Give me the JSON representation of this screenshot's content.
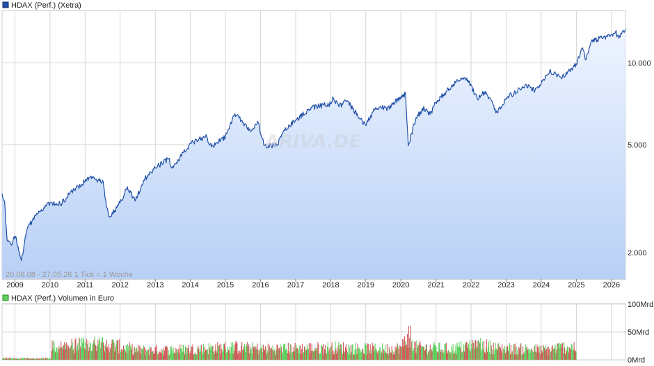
{
  "colors": {
    "price_line": "#1f4fa6",
    "price_fill_top": "#eef4ff",
    "price_fill_bottom": "#b8d0f6",
    "grid": "#d6d6d6",
    "volume_up": "#5ed05e",
    "volume_down": "#d05a5a"
  },
  "watermark": "ARIVA.DE",
  "chart_data": [
    {
      "type": "area",
      "title": "HDAX (Perf.) (Xetra)",
      "note": "20.08.08 - 27.05.26    1 Tick = 1 Woche",
      "y_scale": "log",
      "ylim": [
        1600,
        15500
      ],
      "xlim": [
        "2008-08-20",
        "2026-05-27"
      ],
      "y_ticks": [
        {
          "value": 2000,
          "label": "2.000"
        },
        {
          "value": 5000,
          "label": "5.000"
        },
        {
          "value": 10000,
          "label": "10.000"
        }
      ],
      "x_ticks": [
        "2009",
        "2010",
        "2011",
        "2012",
        "2013",
        "2014",
        "2015",
        "2016",
        "2017",
        "2018",
        "2019",
        "2020",
        "2021",
        "2022",
        "2023",
        "2024",
        "2025",
        "2026"
      ],
      "series": [
        {
          "x": [
            "2008-08-20",
            "2008-09-15",
            "2008-10-10",
            "2008-11-20",
            "2009-01-06",
            "2009-03-09",
            "2009-05-01",
            "2009-08-01",
            "2009-12-31",
            "2010-05-07",
            "2010-08-01",
            "2010-12-31",
            "2011-02-17",
            "2011-05-02",
            "2011-07-08",
            "2011-08-10",
            "2011-09-12",
            "2011-12-31",
            "2012-03-16",
            "2012-06-04",
            "2012-09-15",
            "2012-12-31",
            "2013-05-22",
            "2013-06-24",
            "2013-12-31",
            "2014-06-20",
            "2014-08-08",
            "2014-12-31",
            "2015-04-10",
            "2015-06-15",
            "2015-09-24",
            "2015-12-01",
            "2016-02-11",
            "2016-06-27",
            "2016-09-01",
            "2016-12-31",
            "2017-06-19",
            "2017-12-31",
            "2018-01-23",
            "2018-03-26",
            "2018-06-15",
            "2018-12-27",
            "2019-04-15",
            "2019-08-15",
            "2019-12-31",
            "2020-02-19",
            "2020-03-18",
            "2020-06-08",
            "2020-09-01",
            "2020-10-30",
            "2020-12-31",
            "2021-08-13",
            "2021-11-17",
            "2022-03-07",
            "2022-06-01",
            "2022-09-29",
            "2022-12-31",
            "2023-07-31",
            "2023-10-27",
            "2023-12-31",
            "2024-03-28",
            "2024-08-05",
            "2024-12-31",
            "2025-03-06",
            "2025-04-07",
            "2025-06-05",
            "2025-10-09",
            "2025-12-31",
            "2026-02-12",
            "2026-03-20",
            "2026-05-27"
          ],
          "values": [
            3300,
            3100,
            2250,
            2150,
            2300,
            1870,
            2400,
            2750,
            3050,
            3050,
            3350,
            3650,
            3780,
            3700,
            3650,
            2950,
            2700,
            3050,
            3500,
            3100,
            3750,
            4100,
            4450,
            4100,
            5050,
            5350,
            4900,
            5350,
            6500,
            6150,
            5600,
            6100,
            4950,
            5000,
            5650,
            6150,
            6850,
            7050,
            7500,
            6900,
            7250,
            5900,
            6850,
            6800,
            7500,
            7700,
            4950,
            6300,
            6800,
            6450,
            7150,
            8650,
            8800,
            7350,
            7850,
            6550,
            7400,
            8300,
            7900,
            8350,
            9300,
            8800,
            9900,
            11350,
            10250,
            12000,
            12400,
            12700,
            13000,
            12300,
            13300
          ]
        }
      ]
    },
    {
      "type": "bar",
      "title": "HDAX (Perf.) Volumen in Euro",
      "ylim": [
        0,
        100
      ],
      "y_ticks": [
        {
          "value": 0,
          "label": "0Mrd"
        },
        {
          "value": 50,
          "label": "50Mrd"
        },
        {
          "value": 100,
          "label": "100Mrd"
        }
      ],
      "xlim": [
        "2008-08-20",
        "2026-05-27"
      ],
      "series": [
        {
          "x": [
            "2008-08-20",
            "2010-01-01",
            "2010-01-15",
            "2011-08-10",
            "2012-06-01",
            "2013-06-01",
            "2015-04-01",
            "2016-02-01",
            "2018-03-01",
            "2019-06-01",
            "2020-01-01",
            "2020-03-18",
            "2020-06-01",
            "2021-06-01",
            "2022-03-07",
            "2022-09-29",
            "2023-06-01",
            "2024-03-01",
            "2024-08-05",
            "2025-04-07",
            "2025-06-01",
            "2026-03-20",
            "2026-05-27"
          ],
          "values": [
            2,
            2,
            28,
            36,
            22,
            22,
            28,
            24,
            27,
            24,
            26,
            60,
            28,
            24,
            34,
            26,
            24,
            22,
            28,
            30,
            24,
            24,
            0
          ]
        }
      ]
    }
  ]
}
